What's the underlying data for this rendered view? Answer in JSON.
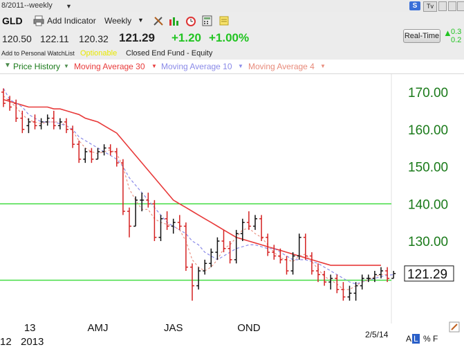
{
  "window": {
    "title": "8/2011--weekly"
  },
  "toolbar": {
    "symbol": "GLD",
    "add_indicator_label": "Add Indicator",
    "interval_label": "Weekly",
    "logo_badge": "S",
    "tv_badge": "Tv"
  },
  "quote": {
    "open": "120.50",
    "high": "122.11",
    "low": "120.32",
    "last": "121.29",
    "change": "+1.20",
    "change_pct": "+1.00%",
    "realtime_label": "Real-Time",
    "realtime_val1": "0.3",
    "realtime_val2": "0.2",
    "up_color": "#21c421"
  },
  "info": {
    "watchlist_link": "Add to Personal WatchList",
    "optionable": "Optionable",
    "fund_type": "Closed End Fund - Equity"
  },
  "legend": {
    "price_history": "Price History",
    "ma30": "Moving Average 30",
    "ma10": "Moving Average 10",
    "ma4": "Moving Average 4",
    "ma30_color": "#e83a3a",
    "ma10_color": "#8a8ae8",
    "ma4_color": "#e88a7a",
    "price_color": "#1a7a1a"
  },
  "footer": {
    "date": "2/5/14",
    "mode_a": "A",
    "mode_l": "L",
    "mode_pct": "%",
    "mode_f": "F"
  },
  "chart_data": {
    "type": "ohlc",
    "title": "",
    "xlabel": "",
    "ylabel": "",
    "ylim": [
      112,
      175
    ],
    "y_ticks": [
      "170.00",
      "160.00",
      "150.00",
      "140.00",
      "130.00"
    ],
    "y_tick_values": [
      170,
      160,
      150,
      140,
      130
    ],
    "x_tick_labels": [
      "13",
      "AMJ",
      "JAS",
      "OND"
    ],
    "x_tick_weeks": [
      2,
      15,
      27,
      39
    ],
    "year_labels": [
      "12",
      "2013"
    ],
    "last_price_label": "121.29",
    "last_price": 121.29,
    "horizontal_lines": [
      {
        "value": 140,
        "color": "#44dd44"
      },
      {
        "value": 119.5,
        "color": "#44dd44"
      }
    ],
    "bars": [
      {
        "o": 170,
        "h": 171,
        "l": 166,
        "c": 167,
        "dir": "down"
      },
      {
        "o": 168,
        "h": 169,
        "l": 165,
        "c": 166,
        "dir": "down"
      },
      {
        "o": 167,
        "h": 168,
        "l": 162,
        "c": 163,
        "dir": "down"
      },
      {
        "o": 163,
        "h": 165,
        "l": 159,
        "c": 160,
        "dir": "down"
      },
      {
        "o": 161,
        "h": 163,
        "l": 159,
        "c": 162,
        "dir": "up"
      },
      {
        "o": 162,
        "h": 164,
        "l": 160,
        "c": 161,
        "dir": "down"
      },
      {
        "o": 161,
        "h": 163,
        "l": 160,
        "c": 162,
        "dir": "up"
      },
      {
        "o": 162,
        "h": 164,
        "l": 161,
        "c": 163,
        "dir": "up"
      },
      {
        "o": 163,
        "h": 165,
        "l": 160,
        "c": 161,
        "dir": "down"
      },
      {
        "o": 161,
        "h": 163,
        "l": 160,
        "c": 162,
        "dir": "up"
      },
      {
        "o": 162,
        "h": 163,
        "l": 159,
        "c": 160,
        "dir": "down"
      },
      {
        "o": 160,
        "h": 161,
        "l": 155,
        "c": 156,
        "dir": "down"
      },
      {
        "o": 156,
        "h": 157,
        "l": 151,
        "c": 152,
        "dir": "down"
      },
      {
        "o": 152,
        "h": 155,
        "l": 151,
        "c": 154,
        "dir": "up"
      },
      {
        "o": 154,
        "h": 155,
        "l": 151,
        "c": 152,
        "dir": "down"
      },
      {
        "o": 152,
        "h": 155,
        "l": 152,
        "c": 154,
        "dir": "up"
      },
      {
        "o": 154,
        "h": 156,
        "l": 153,
        "c": 155,
        "dir": "up"
      },
      {
        "o": 155,
        "h": 156,
        "l": 153,
        "c": 154,
        "dir": "down"
      },
      {
        "o": 154,
        "h": 155,
        "l": 150,
        "c": 151,
        "dir": "down"
      },
      {
        "o": 151,
        "h": 152,
        "l": 137,
        "c": 138,
        "dir": "down"
      },
      {
        "o": 138,
        "h": 139,
        "l": 131,
        "c": 134,
        "dir": "down"
      },
      {
        "o": 134,
        "h": 142,
        "l": 134,
        "c": 141,
        "dir": "up"
      },
      {
        "o": 141,
        "h": 143,
        "l": 138,
        "c": 141,
        "dir": "up"
      },
      {
        "o": 141,
        "h": 143,
        "l": 139,
        "c": 140,
        "dir": "down"
      },
      {
        "o": 140,
        "h": 141,
        "l": 130,
        "c": 131,
        "dir": "down"
      },
      {
        "o": 131,
        "h": 137,
        "l": 130,
        "c": 136,
        "dir": "up"
      },
      {
        "o": 136,
        "h": 138,
        "l": 133,
        "c": 134,
        "dir": "down"
      },
      {
        "o": 134,
        "h": 136,
        "l": 132,
        "c": 135,
        "dir": "up"
      },
      {
        "o": 135,
        "h": 137,
        "l": 133,
        "c": 134,
        "dir": "down"
      },
      {
        "o": 134,
        "h": 135,
        "l": 122,
        "c": 123,
        "dir": "down"
      },
      {
        "o": 123,
        "h": 124,
        "l": 114,
        "c": 118,
        "dir": "down"
      },
      {
        "o": 118,
        "h": 123,
        "l": 117,
        "c": 122,
        "dir": "up"
      },
      {
        "o": 122,
        "h": 125,
        "l": 121,
        "c": 124,
        "dir": "up"
      },
      {
        "o": 124,
        "h": 128,
        "l": 123,
        "c": 127,
        "dir": "up"
      },
      {
        "o": 127,
        "h": 131,
        "l": 125,
        "c": 130,
        "dir": "up"
      },
      {
        "o": 130,
        "h": 133,
        "l": 127,
        "c": 128,
        "dir": "down"
      },
      {
        "o": 128,
        "h": 130,
        "l": 124,
        "c": 125,
        "dir": "down"
      },
      {
        "o": 125,
        "h": 133,
        "l": 124,
        "c": 132,
        "dir": "up"
      },
      {
        "o": 132,
        "h": 136,
        "l": 130,
        "c": 135,
        "dir": "up"
      },
      {
        "o": 135,
        "h": 138,
        "l": 133,
        "c": 134,
        "dir": "down"
      },
      {
        "o": 134,
        "h": 137,
        "l": 133,
        "c": 136,
        "dir": "up"
      },
      {
        "o": 136,
        "h": 137,
        "l": 130,
        "c": 131,
        "dir": "down"
      },
      {
        "o": 131,
        "h": 132,
        "l": 126,
        "c": 127,
        "dir": "down"
      },
      {
        "o": 127,
        "h": 129,
        "l": 125,
        "c": 126,
        "dir": "down"
      },
      {
        "o": 126,
        "h": 128,
        "l": 124,
        "c": 125,
        "dir": "down"
      },
      {
        "o": 125,
        "h": 126,
        "l": 121,
        "c": 122,
        "dir": "down"
      },
      {
        "o": 122,
        "h": 127,
        "l": 121,
        "c": 126,
        "dir": "up"
      },
      {
        "o": 126,
        "h": 132,
        "l": 125,
        "c": 131,
        "dir": "up"
      },
      {
        "o": 131,
        "h": 132,
        "l": 125,
        "c": 126,
        "dir": "down"
      },
      {
        "o": 126,
        "h": 127,
        "l": 121,
        "c": 122,
        "dir": "down"
      },
      {
        "o": 122,
        "h": 124,
        "l": 119,
        "c": 121,
        "dir": "down"
      },
      {
        "o": 121,
        "h": 122,
        "l": 118,
        "c": 119,
        "dir": "down"
      },
      {
        "o": 119,
        "h": 121,
        "l": 117,
        "c": 120,
        "dir": "up"
      },
      {
        "o": 120,
        "h": 121,
        "l": 116,
        "c": 117,
        "dir": "down"
      },
      {
        "o": 117,
        "h": 119,
        "l": 114,
        "c": 115,
        "dir": "down"
      },
      {
        "o": 115,
        "h": 118,
        "l": 114,
        "c": 116,
        "dir": "up"
      },
      {
        "o": 116,
        "h": 119,
        "l": 114,
        "c": 118,
        "dir": "up"
      },
      {
        "o": 118,
        "h": 121,
        "l": 117,
        "c": 120,
        "dir": "up"
      },
      {
        "o": 120,
        "h": 121,
        "l": 119,
        "c": 120,
        "dir": "up"
      },
      {
        "o": 120,
        "h": 122,
        "l": 119,
        "c": 121,
        "dir": "up"
      },
      {
        "o": 121,
        "h": 123,
        "l": 120,
        "c": 122,
        "dir": "up"
      },
      {
        "o": 122,
        "h": 123,
        "l": 119,
        "c": 120,
        "dir": "down"
      },
      {
        "o": 120,
        "h": 122,
        "l": 120,
        "c": 121.29,
        "dir": "up"
      }
    ],
    "series": [
      {
        "name": "Moving Average 30",
        "values": [
          168,
          167.5,
          167,
          166.5,
          166,
          166,
          166,
          166,
          165.5,
          165.5,
          165,
          164.5,
          164,
          163,
          162.5,
          162,
          161,
          160,
          159,
          157,
          155,
          153,
          151,
          149,
          147,
          145,
          143,
          141,
          140,
          139,
          138,
          137,
          136,
          135,
          134,
          133,
          132,
          131,
          130.5,
          130,
          129.5,
          129,
          128.5,
          128,
          127.5,
          127,
          126.5,
          126,
          125.5,
          125,
          124.5,
          124,
          123.5,
          123.5,
          123.5,
          123.5,
          123.5,
          123.5,
          123.5,
          123.5,
          123.5
        ]
      },
      {
        "name": "Moving Average 10",
        "values": [
          171,
          168,
          167,
          166,
          164,
          163,
          162,
          162,
          162,
          161.5,
          161,
          160,
          158,
          157,
          156,
          155,
          154,
          153,
          152,
          150,
          147,
          145,
          143,
          141,
          139,
          137,
          135,
          134,
          133,
          132,
          130,
          129,
          127,
          126,
          125,
          126,
          127,
          128,
          128.5,
          129,
          129,
          128.5,
          128,
          128,
          127,
          126,
          125,
          125,
          125,
          124.5,
          124,
          123,
          122,
          121,
          120,
          119,
          118.5,
          119,
          119.5,
          120,
          120.5,
          120.8,
          121
        ]
      },
      {
        "name": "Moving Average 4",
        "values": [
          169,
          167.5,
          166,
          164,
          162.5,
          162,
          161.5,
          162,
          162,
          162,
          161,
          159.5,
          157,
          155,
          154,
          153.5,
          154,
          154.5,
          153.5,
          150,
          144,
          141,
          138.5,
          138.5,
          136,
          135,
          134.5,
          134,
          133,
          130,
          125,
          123,
          122,
          123,
          125,
          128,
          129,
          131,
          133,
          133.5,
          132,
          131,
          129,
          127,
          125.5,
          125,
          124.5,
          126,
          126.5,
          124.5,
          122.5,
          120.5,
          119.5,
          118.5,
          117,
          117,
          118,
          119,
          119.5,
          120.5,
          121,
          121
        ]
      }
    ]
  }
}
